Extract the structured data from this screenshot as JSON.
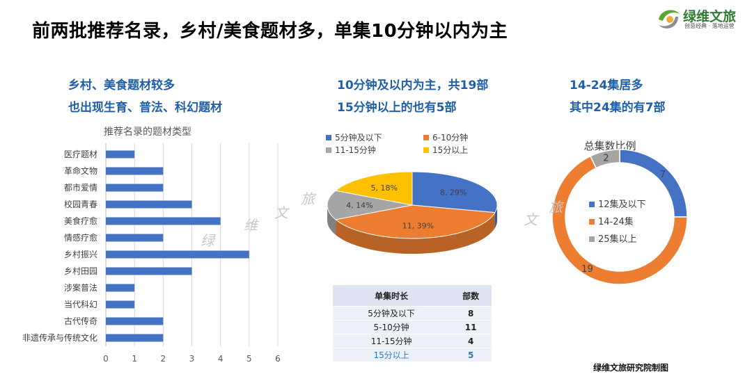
{
  "header": {
    "title": "前两批推荐名录，乡村/美食题材多，单集10分钟以内为主",
    "logo_name": "绿维文旅",
    "logo_slogan": "创意经典 · 落地运营"
  },
  "left_panel": {
    "line1": "乡村、美食题材较多",
    "line2": "也出现生育、普法、科幻题材"
  },
  "middle_panel": {
    "line1": "10分钟及以内为主，共19部",
    "line2": "15分钟以上的也有5部"
  },
  "right_panel": {
    "line1": "14-24集居多",
    "line2": "其中24集的有7部"
  },
  "watermark": [
    "绿",
    "维",
    "文",
    "旅"
  ],
  "table": {
    "headers": [
      "单集时长",
      "部数"
    ],
    "rows": [
      {
        "duration": "5分钟及以下",
        "count": "8"
      },
      {
        "duration": "5-10分钟",
        "count": "11"
      },
      {
        "duration": "11-15分钟",
        "count": "4"
      },
      {
        "duration": "15分以上",
        "count": "5"
      }
    ]
  },
  "footer": {
    "credit": "绿维文旅研究院制图"
  },
  "chart_data": [
    {
      "type": "bar",
      "orientation": "horizontal",
      "title": "推荐名录的题材类型",
      "categories": [
        "医疗题材",
        "革命文物",
        "都市爱情",
        "校园青春",
        "美食疗愈",
        "情感疗愈",
        "乡村振兴",
        "乡村田园",
        "涉案普法",
        "当代科幻",
        "古代传奇",
        "非遗传承与传统文化"
      ],
      "values": [
        1,
        2,
        2,
        3,
        4,
        2,
        5,
        3,
        1,
        1,
        2,
        2
      ],
      "xlim": [
        0,
        6
      ],
      "xticks": [
        "0",
        "1",
        "2",
        "3",
        "4",
        "5",
        "6"
      ],
      "color": "#4472c4",
      "grid": true
    },
    {
      "type": "pie",
      "style": "3d",
      "categories": [
        "5分钟及以下",
        "6-10分钟",
        "11-15分钟",
        "15分以上"
      ],
      "values": [
        8,
        11,
        4,
        5
      ],
      "labels": [
        "8, 29%",
        "11, 39%",
        "4, 14%",
        "5, 18%"
      ],
      "colors": [
        "#4472c4",
        "#ed7d31",
        "#a5a5a5",
        "#ffc000"
      ],
      "legend": "top"
    },
    {
      "type": "pie",
      "style": "donut",
      "title": "总集数比例",
      "categories": [
        "12集及以下",
        "14-24集",
        "25集以上"
      ],
      "values": [
        7,
        19,
        2
      ],
      "labels": [
        "7",
        "19",
        "2"
      ],
      "colors": [
        "#4472c4",
        "#ed7d31",
        "#a5a5a5"
      ],
      "legend": "center"
    }
  ]
}
